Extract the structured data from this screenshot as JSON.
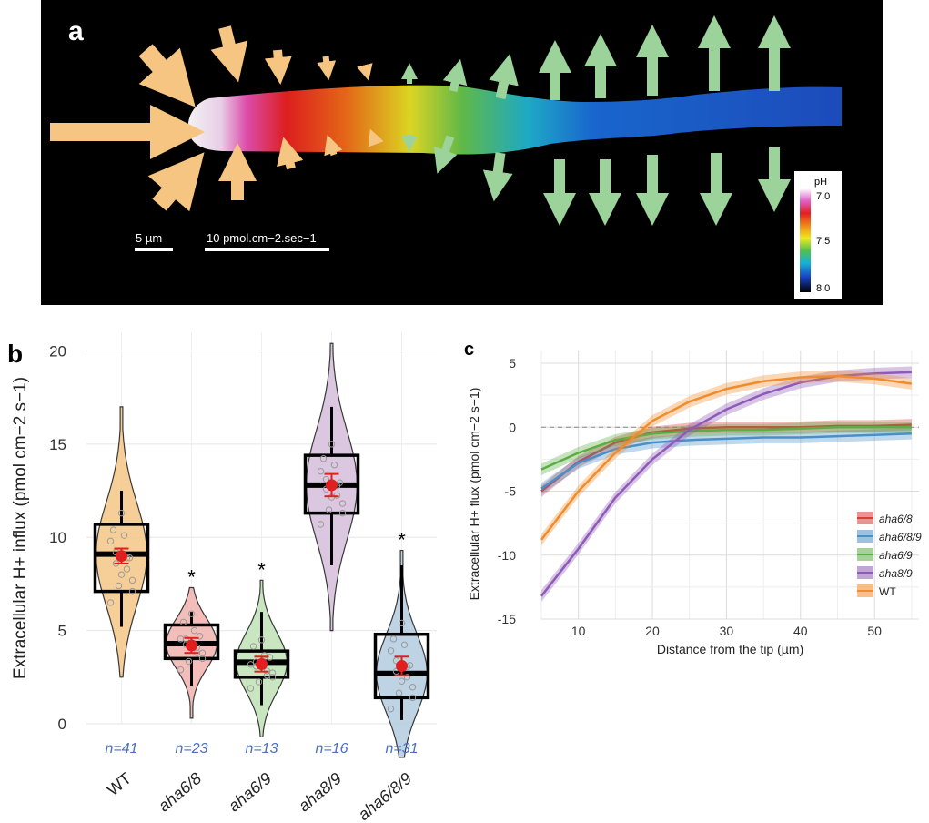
{
  "panel_a": {
    "letter": "a",
    "scale_bar_1_label": "5 µm",
    "scale_bar_2_label": "10 pmol.cm−2.sec−1",
    "colorbar": {
      "title": "pH",
      "ticks": [
        "7.0",
        "7.5",
        "8.0"
      ]
    },
    "influx_color": "#f5c581",
    "efflux_color": "#9cd39a"
  },
  "chart_data": [
    {
      "panel": "b",
      "type": "violin-box",
      "ylabel": "Extracellular H+ influx (pmol cm−2 s−1)",
      "ylim": [
        0,
        21
      ],
      "yticks": [
        0,
        5,
        10,
        15,
        20
      ],
      "categories": [
        "WT",
        "aha6/8",
        "aha6/9",
        "aha8/9",
        "aha6/8/9"
      ],
      "n_labels": [
        "n=41",
        "n=23",
        "n=13",
        "n=16",
        "n=31"
      ],
      "significance": [
        "",
        "*",
        "*",
        "",
        "*"
      ],
      "fill_colors": [
        "#f6c98d",
        "#f2b8b3",
        "#c3e4b9",
        "#d8c2dd",
        "#b7cfe2"
      ],
      "box": [
        {
          "q1": 7.1,
          "median": 9.1,
          "q3": 10.7,
          "whisker_low": 5.2,
          "whisker_high": 12.5
        },
        {
          "q1": 3.5,
          "median": 4.3,
          "q3": 5.3,
          "whisker_low": 2.0,
          "whisker_high": 6.0
        },
        {
          "q1": 2.5,
          "median": 3.3,
          "q3": 3.9,
          "whisker_low": 1.0,
          "whisker_high": 6.0
        },
        {
          "q1": 11.3,
          "median": 12.8,
          "q3": 14.4,
          "whisker_low": 8.5,
          "whisker_high": 17.0
        },
        {
          "q1": 1.4,
          "median": 2.7,
          "q3": 4.8,
          "whisker_low": 0.2,
          "whisker_high": 8.5
        }
      ],
      "violin_range": [
        [
          2.5,
          17.0
        ],
        [
          0.3,
          7.3
        ],
        [
          -0.7,
          7.7
        ],
        [
          5.0,
          20.4
        ],
        [
          -1.8,
          9.3
        ]
      ],
      "mean": [
        9.0,
        4.2,
        3.2,
        12.8,
        3.1
      ],
      "mean_error": [
        0.4,
        0.4,
        0.4,
        0.6,
        0.5
      ],
      "mean_color": "#e02020"
    },
    {
      "panel": "c",
      "type": "line",
      "xlabel": "Distance from the tip (µm)",
      "ylabel": "Extracellular H+ flux (pmol cm−2 s−1)",
      "xlim": [
        5,
        56
      ],
      "ylim": [
        -15,
        6
      ],
      "xticks": [
        10,
        20,
        30,
        40,
        50
      ],
      "yticks": [
        -15,
        -10,
        -5,
        0,
        5
      ],
      "zero_line": true,
      "legend_position": "right",
      "series": [
        {
          "name": "aha6/8",
          "color": "#d93a3a",
          "x": [
            5,
            10,
            15,
            20,
            25,
            30,
            35,
            40,
            45,
            50,
            55
          ],
          "y": [
            -5.0,
            -2.7,
            -1.2,
            -0.4,
            -0.1,
            0.0,
            0.0,
            0.0,
            0.1,
            0.1,
            0.2
          ]
        },
        {
          "name": "aha6/8/9",
          "color": "#4a8fc7",
          "x": [
            5,
            10,
            15,
            20,
            25,
            30,
            35,
            40,
            45,
            50,
            55
          ],
          "y": [
            -4.8,
            -2.8,
            -1.7,
            -1.2,
            -1.0,
            -0.9,
            -0.8,
            -0.8,
            -0.7,
            -0.6,
            -0.5
          ]
        },
        {
          "name": "aha6/9",
          "color": "#5cad46",
          "x": [
            5,
            10,
            15,
            20,
            25,
            30,
            35,
            40,
            45,
            50,
            55
          ],
          "y": [
            -3.3,
            -2.0,
            -1.0,
            -0.5,
            -0.3,
            -0.2,
            -0.2,
            -0.1,
            0.0,
            0.0,
            0.0
          ]
        },
        {
          "name": "aha8/9",
          "color": "#8e5ab8",
          "x": [
            5,
            10,
            15,
            20,
            25,
            30,
            35,
            40,
            45,
            50,
            55
          ],
          "y": [
            -13.2,
            -9.5,
            -5.5,
            -2.5,
            -0.2,
            1.4,
            2.6,
            3.5,
            4.0,
            4.2,
            4.3
          ]
        },
        {
          "name": "WT",
          "color": "#f08c2c",
          "x": [
            5,
            10,
            15,
            20,
            25,
            30,
            35,
            40,
            45,
            50,
            55
          ],
          "y": [
            -8.8,
            -5.0,
            -2.0,
            0.5,
            2.0,
            3.0,
            3.6,
            3.9,
            4.0,
            3.8,
            3.4
          ]
        }
      ]
    }
  ]
}
